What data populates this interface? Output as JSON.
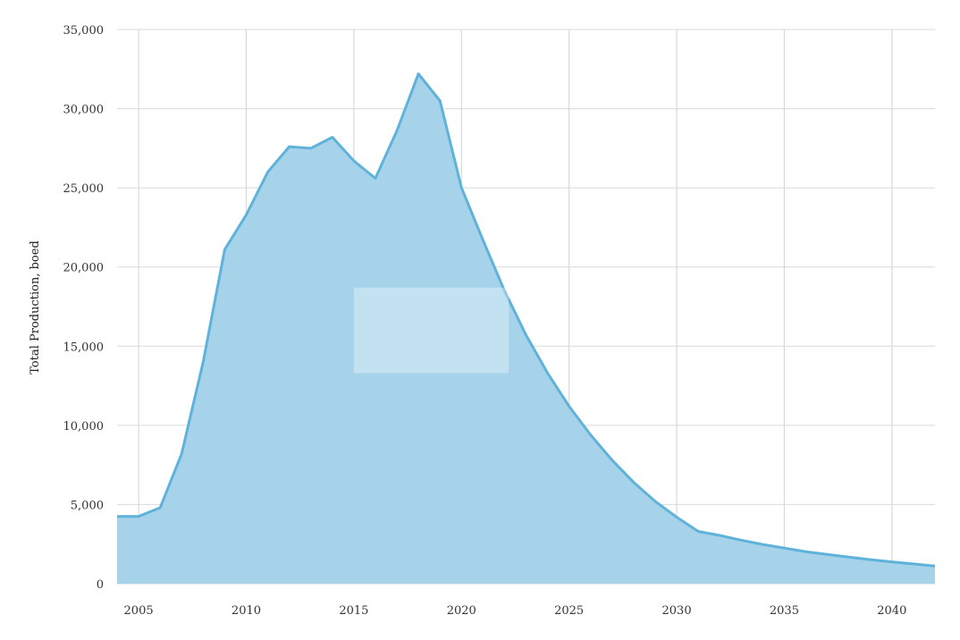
{
  "chart_data": {
    "type": "area",
    "ylabel": "Total Production, boed",
    "xlabel": "",
    "title": "",
    "xlim": [
      2004,
      2042
    ],
    "ylim": [
      0,
      35000
    ],
    "y_ticks": [
      {
        "value": 0,
        "label": "0"
      },
      {
        "value": 5000,
        "label": "5,000"
      },
      {
        "value": 10000,
        "label": "10,000"
      },
      {
        "value": 15000,
        "label": "15,000"
      },
      {
        "value": 20000,
        "label": "20,000"
      },
      {
        "value": 25000,
        "label": "25,000"
      },
      {
        "value": 30000,
        "label": "30,000"
      },
      {
        "value": 35000,
        "label": "35,000"
      }
    ],
    "x_ticks": [
      {
        "value": 2005,
        "label": "2005"
      },
      {
        "value": 2010,
        "label": "2010"
      },
      {
        "value": 2015,
        "label": "2015"
      },
      {
        "value": 2020,
        "label": "2020"
      },
      {
        "value": 2025,
        "label": "2025"
      },
      {
        "value": 2030,
        "label": "2030"
      },
      {
        "value": 2035,
        "label": "2035"
      },
      {
        "value": 2040,
        "label": "2040"
      }
    ],
    "grid": true,
    "legend": "none",
    "colors": {
      "fill": "#a6d3ea",
      "line": "#5fb2da",
      "grid": "#d9d9d9",
      "highlight": "#c6e2f2"
    },
    "series": [
      {
        "x": [
          2004,
          2005,
          2006,
          2007,
          2008,
          2009,
          2010,
          2011,
          2012,
          2013,
          2014,
          2015,
          2016,
          2017,
          2018,
          2019,
          2020,
          2021,
          2022,
          2023,
          2024,
          2025,
          2026,
          2027,
          2028,
          2029,
          2030,
          2031,
          2032,
          2033,
          2034,
          2035,
          2036,
          2037,
          2038,
          2039,
          2040,
          2041,
          2042
        ],
        "values": [
          4250,
          4250,
          4800,
          8200,
          14000,
          21100,
          23300,
          26000,
          27600,
          27500,
          28200,
          26700,
          25600,
          28600,
          32200,
          30500,
          25000,
          21700,
          18500,
          15700,
          13300,
          11200,
          9400,
          7800,
          6400,
          5200,
          4200,
          3300,
          3050,
          2750,
          2480,
          2250,
          2020,
          1850,
          1680,
          1520,
          1380,
          1250,
          1120
        ]
      }
    ]
  }
}
